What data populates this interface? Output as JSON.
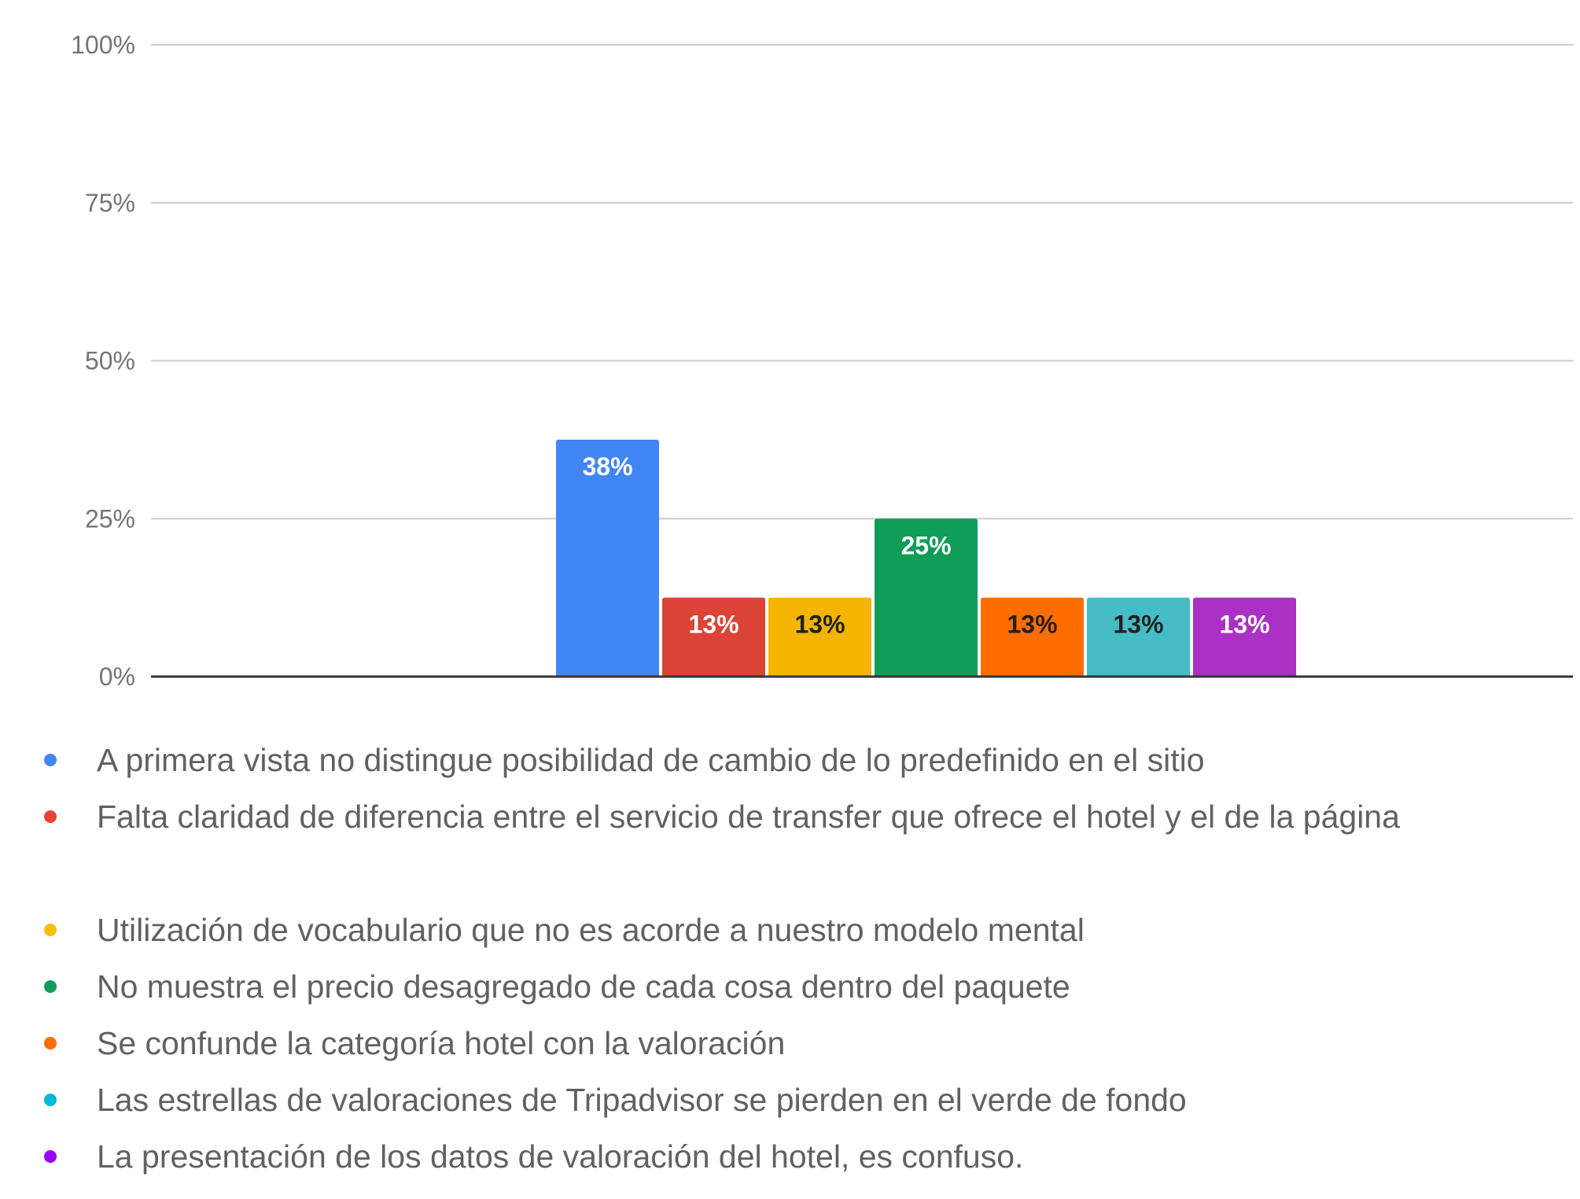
{
  "chart_data": {
    "type": "bar",
    "categories": [
      "A primera vista no distingue posibilidad de cambio de lo predefinido en el sitio",
      "Falta claridad de diferencia entre el servicio de transfer que ofrece el hotel y el de la página",
      "Utilización de vocabulario que no es acorde a nuestro modelo mental",
      "No muestra el precio desagregado de cada cosa dentro del paquete",
      "Se confunde la categoría hotel con la valoración",
      "Las estrellas de valoraciones de Tripadvisor se pierden en el verde de fondo",
      "La presentación de los datos de valoración del hotel, es confuso."
    ],
    "values": [
      37.5,
      12.5,
      12.5,
      25,
      12.5,
      12.5,
      12.5
    ],
    "data_labels": [
      "38%",
      "13%",
      "13%",
      "25%",
      "13%",
      "13%",
      "13%"
    ],
    "colors": [
      "#4285f4",
      "#db4437",
      "#f4b400",
      "#0f9d58",
      "#ff6d01",
      "#46bdc6",
      "#ab30c4"
    ],
    "legend_dot_colors": [
      "#4285f4",
      "#ea4335",
      "#fbbc04",
      "#0f9d58",
      "#ff6d01",
      "#00b8d9",
      "#9900ff"
    ],
    "label_text_colors": [
      "#ffffff",
      "#ffffff",
      "#212121",
      "#ffffff",
      "#212121",
      "#212121",
      "#ffffff"
    ],
    "yticks": [
      "0%",
      "25%",
      "50%",
      "75%",
      "100%"
    ],
    "ylim": [
      0,
      100
    ],
    "grid": true,
    "legend_position": "bottom",
    "title": "",
    "xlabel": "",
    "ylabel": ""
  }
}
